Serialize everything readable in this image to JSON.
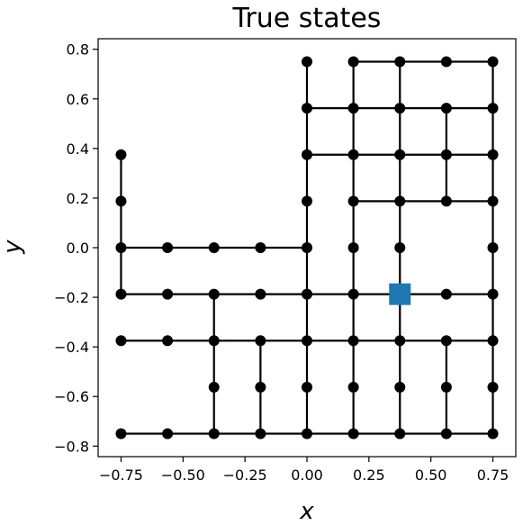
{
  "chart_data": {
    "type": "scatter",
    "title": "True states",
    "xlabel": "x",
    "ylabel": "y",
    "xlim": [
      -0.8425,
      0.8425
    ],
    "ylim": [
      -0.8425,
      0.8425
    ],
    "grid": false,
    "x_ticks": [
      -0.75,
      -0.5,
      -0.25,
      0.0,
      0.25,
      0.5,
      0.75
    ],
    "x_tick_labels": [
      "−0.75",
      "−0.50",
      "−0.25",
      "0.00",
      "0.25",
      "0.50",
      "0.75"
    ],
    "y_ticks": [
      -0.8,
      -0.6,
      -0.4,
      -0.2,
      0.0,
      0.2,
      0.4,
      0.6,
      0.8
    ],
    "y_tick_labels": [
      "−0.8",
      "−0.6",
      "−0.4",
      "−0.2",
      "0.0",
      "0.2",
      "0.4",
      "0.6",
      "0.8"
    ],
    "colors": {
      "nodes": "#000000",
      "edges": "#000000",
      "marker": "#1f77b4"
    },
    "nodes": [
      [
        -0.75,
        0.375
      ],
      [
        -0.75,
        0.1875
      ],
      [
        -0.75,
        0.0
      ],
      [
        -0.5625,
        0.0
      ],
      [
        -0.375,
        0.0
      ],
      [
        -0.1875,
        0.0
      ],
      [
        -0.75,
        -0.1875
      ],
      [
        -0.5625,
        -0.1875
      ],
      [
        -0.375,
        -0.1875
      ],
      [
        -0.1875,
        -0.1875
      ],
      [
        -0.75,
        -0.375
      ],
      [
        -0.5625,
        -0.375
      ],
      [
        -0.375,
        -0.375
      ],
      [
        -0.1875,
        -0.375
      ],
      [
        -0.375,
        -0.5625
      ],
      [
        -0.1875,
        -0.5625
      ],
      [
        -0.75,
        -0.75
      ],
      [
        -0.5625,
        -0.75
      ],
      [
        -0.375,
        -0.75
      ],
      [
        -0.1875,
        -0.75
      ],
      [
        0.0,
        0.75
      ],
      [
        0.0,
        0.5625
      ],
      [
        0.0,
        0.375
      ],
      [
        0.0,
        0.1875
      ],
      [
        0.0,
        0.0
      ],
      [
        0.0,
        -0.1875
      ],
      [
        0.0,
        -0.375
      ],
      [
        0.0,
        -0.5625
      ],
      [
        0.0,
        -0.75
      ],
      [
        0.1875,
        0.75
      ],
      [
        0.1875,
        0.5625
      ],
      [
        0.1875,
        0.375
      ],
      [
        0.1875,
        0.1875
      ],
      [
        0.1875,
        0.0
      ],
      [
        0.1875,
        -0.1875
      ],
      [
        0.1875,
        -0.375
      ],
      [
        0.1875,
        -0.5625
      ],
      [
        0.1875,
        -0.75
      ],
      [
        0.375,
        0.75
      ],
      [
        0.375,
        0.5625
      ],
      [
        0.375,
        0.375
      ],
      [
        0.375,
        0.1875
      ],
      [
        0.375,
        0.0
      ],
      [
        0.375,
        -0.375
      ],
      [
        0.375,
        -0.5625
      ],
      [
        0.375,
        -0.75
      ],
      [
        0.5625,
        0.75
      ],
      [
        0.5625,
        0.5625
      ],
      [
        0.5625,
        0.375
      ],
      [
        0.5625,
        0.1875
      ],
      [
        0.5625,
        -0.1875
      ],
      [
        0.5625,
        -0.375
      ],
      [
        0.5625,
        -0.5625
      ],
      [
        0.5625,
        -0.75
      ],
      [
        0.75,
        0.75
      ],
      [
        0.75,
        0.5625
      ],
      [
        0.75,
        0.375
      ],
      [
        0.75,
        0.1875
      ],
      [
        0.75,
        0.0
      ],
      [
        0.75,
        -0.1875
      ],
      [
        0.75,
        -0.375
      ],
      [
        0.75,
        -0.5625
      ],
      [
        0.75,
        -0.75
      ]
    ],
    "edges": [
      [
        [
          -0.75,
          0.375
        ],
        [
          -0.75,
          -0.1875
        ]
      ],
      [
        [
          -0.75,
          0.0
        ],
        [
          0.0,
          0.0
        ]
      ],
      [
        [
          -0.75,
          -0.1875
        ],
        [
          0.75,
          -0.1875
        ]
      ],
      [
        [
          -0.75,
          -0.375
        ],
        [
          0.75,
          -0.375
        ]
      ],
      [
        [
          -0.75,
          -0.75
        ],
        [
          0.75,
          -0.75
        ]
      ],
      [
        [
          -0.375,
          -0.1875
        ],
        [
          -0.375,
          -0.75
        ]
      ],
      [
        [
          -0.1875,
          -0.375
        ],
        [
          -0.1875,
          -0.75
        ]
      ],
      [
        [
          0.0,
          0.75
        ],
        [
          0.0,
          -0.75
        ]
      ],
      [
        [
          0.1875,
          0.75
        ],
        [
          0.1875,
          -0.75
        ]
      ],
      [
        [
          0.375,
          0.75
        ],
        [
          0.375,
          -0.75
        ]
      ],
      [
        [
          0.75,
          0.75
        ],
        [
          0.75,
          -0.75
        ]
      ],
      [
        [
          0.1875,
          0.75
        ],
        [
          0.75,
          0.75
        ]
      ],
      [
        [
          0.0,
          0.5625
        ],
        [
          0.75,
          0.5625
        ]
      ],
      [
        [
          0.0,
          0.375
        ],
        [
          0.75,
          0.375
        ]
      ],
      [
        [
          0.1875,
          0.1875
        ],
        [
          0.75,
          0.1875
        ]
      ],
      [
        [
          0.5625,
          0.5625
        ],
        [
          0.5625,
          0.1875
        ]
      ],
      [
        [
          0.5625,
          -0.375
        ],
        [
          0.5625,
          -0.75
        ]
      ]
    ],
    "marker": {
      "shape": "square",
      "x": 0.375,
      "y": -0.1875
    }
  }
}
